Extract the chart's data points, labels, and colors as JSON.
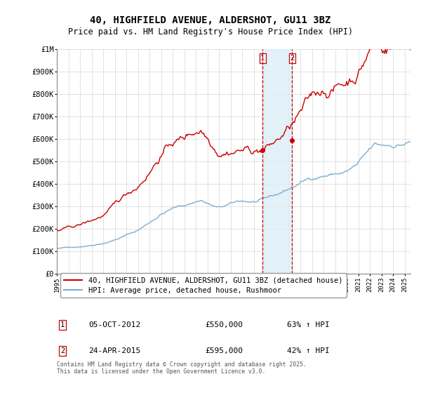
{
  "title": "40, HIGHFIELD AVENUE, ALDERSHOT, GU11 3BZ",
  "subtitle": "Price paid vs. HM Land Registry's House Price Index (HPI)",
  "title_fontsize": 10,
  "subtitle_fontsize": 8.5,
  "hpi_label": "HPI: Average price, detached house, Rushmoor",
  "price_label": "40, HIGHFIELD AVENUE, ALDERSHOT, GU11 3BZ (detached house)",
  "sale1_date": "05-OCT-2012",
  "sale1_price": "£550,000",
  "sale1_hpi": "63% ↑ HPI",
  "sale1_x": 2012.75,
  "sale2_date": "24-APR-2015",
  "sale2_price": "£595,000",
  "sale2_hpi": "42% ↑ HPI",
  "sale2_x": 2015.29,
  "sale1_y": 550000,
  "sale2_y": 595000,
  "price_color": "#cc0000",
  "hpi_color": "#7ab0d4",
  "vline_color": "#cc0000",
  "shade_color": "#ddeef8",
  "yticks": [
    0,
    100000,
    200000,
    300000,
    400000,
    500000,
    600000,
    700000,
    800000,
    900000,
    1000000
  ],
  "ytick_labels": [
    "£0",
    "£100K",
    "£200K",
    "£300K",
    "£400K",
    "£500K",
    "£600K",
    "£700K",
    "£800K",
    "£900K",
    "£1M"
  ],
  "xmin": 1995,
  "xmax": 2025.5,
  "footer": "Contains HM Land Registry data © Crown copyright and database right 2025.\nThis data is licensed under the Open Government Licence v3.0."
}
